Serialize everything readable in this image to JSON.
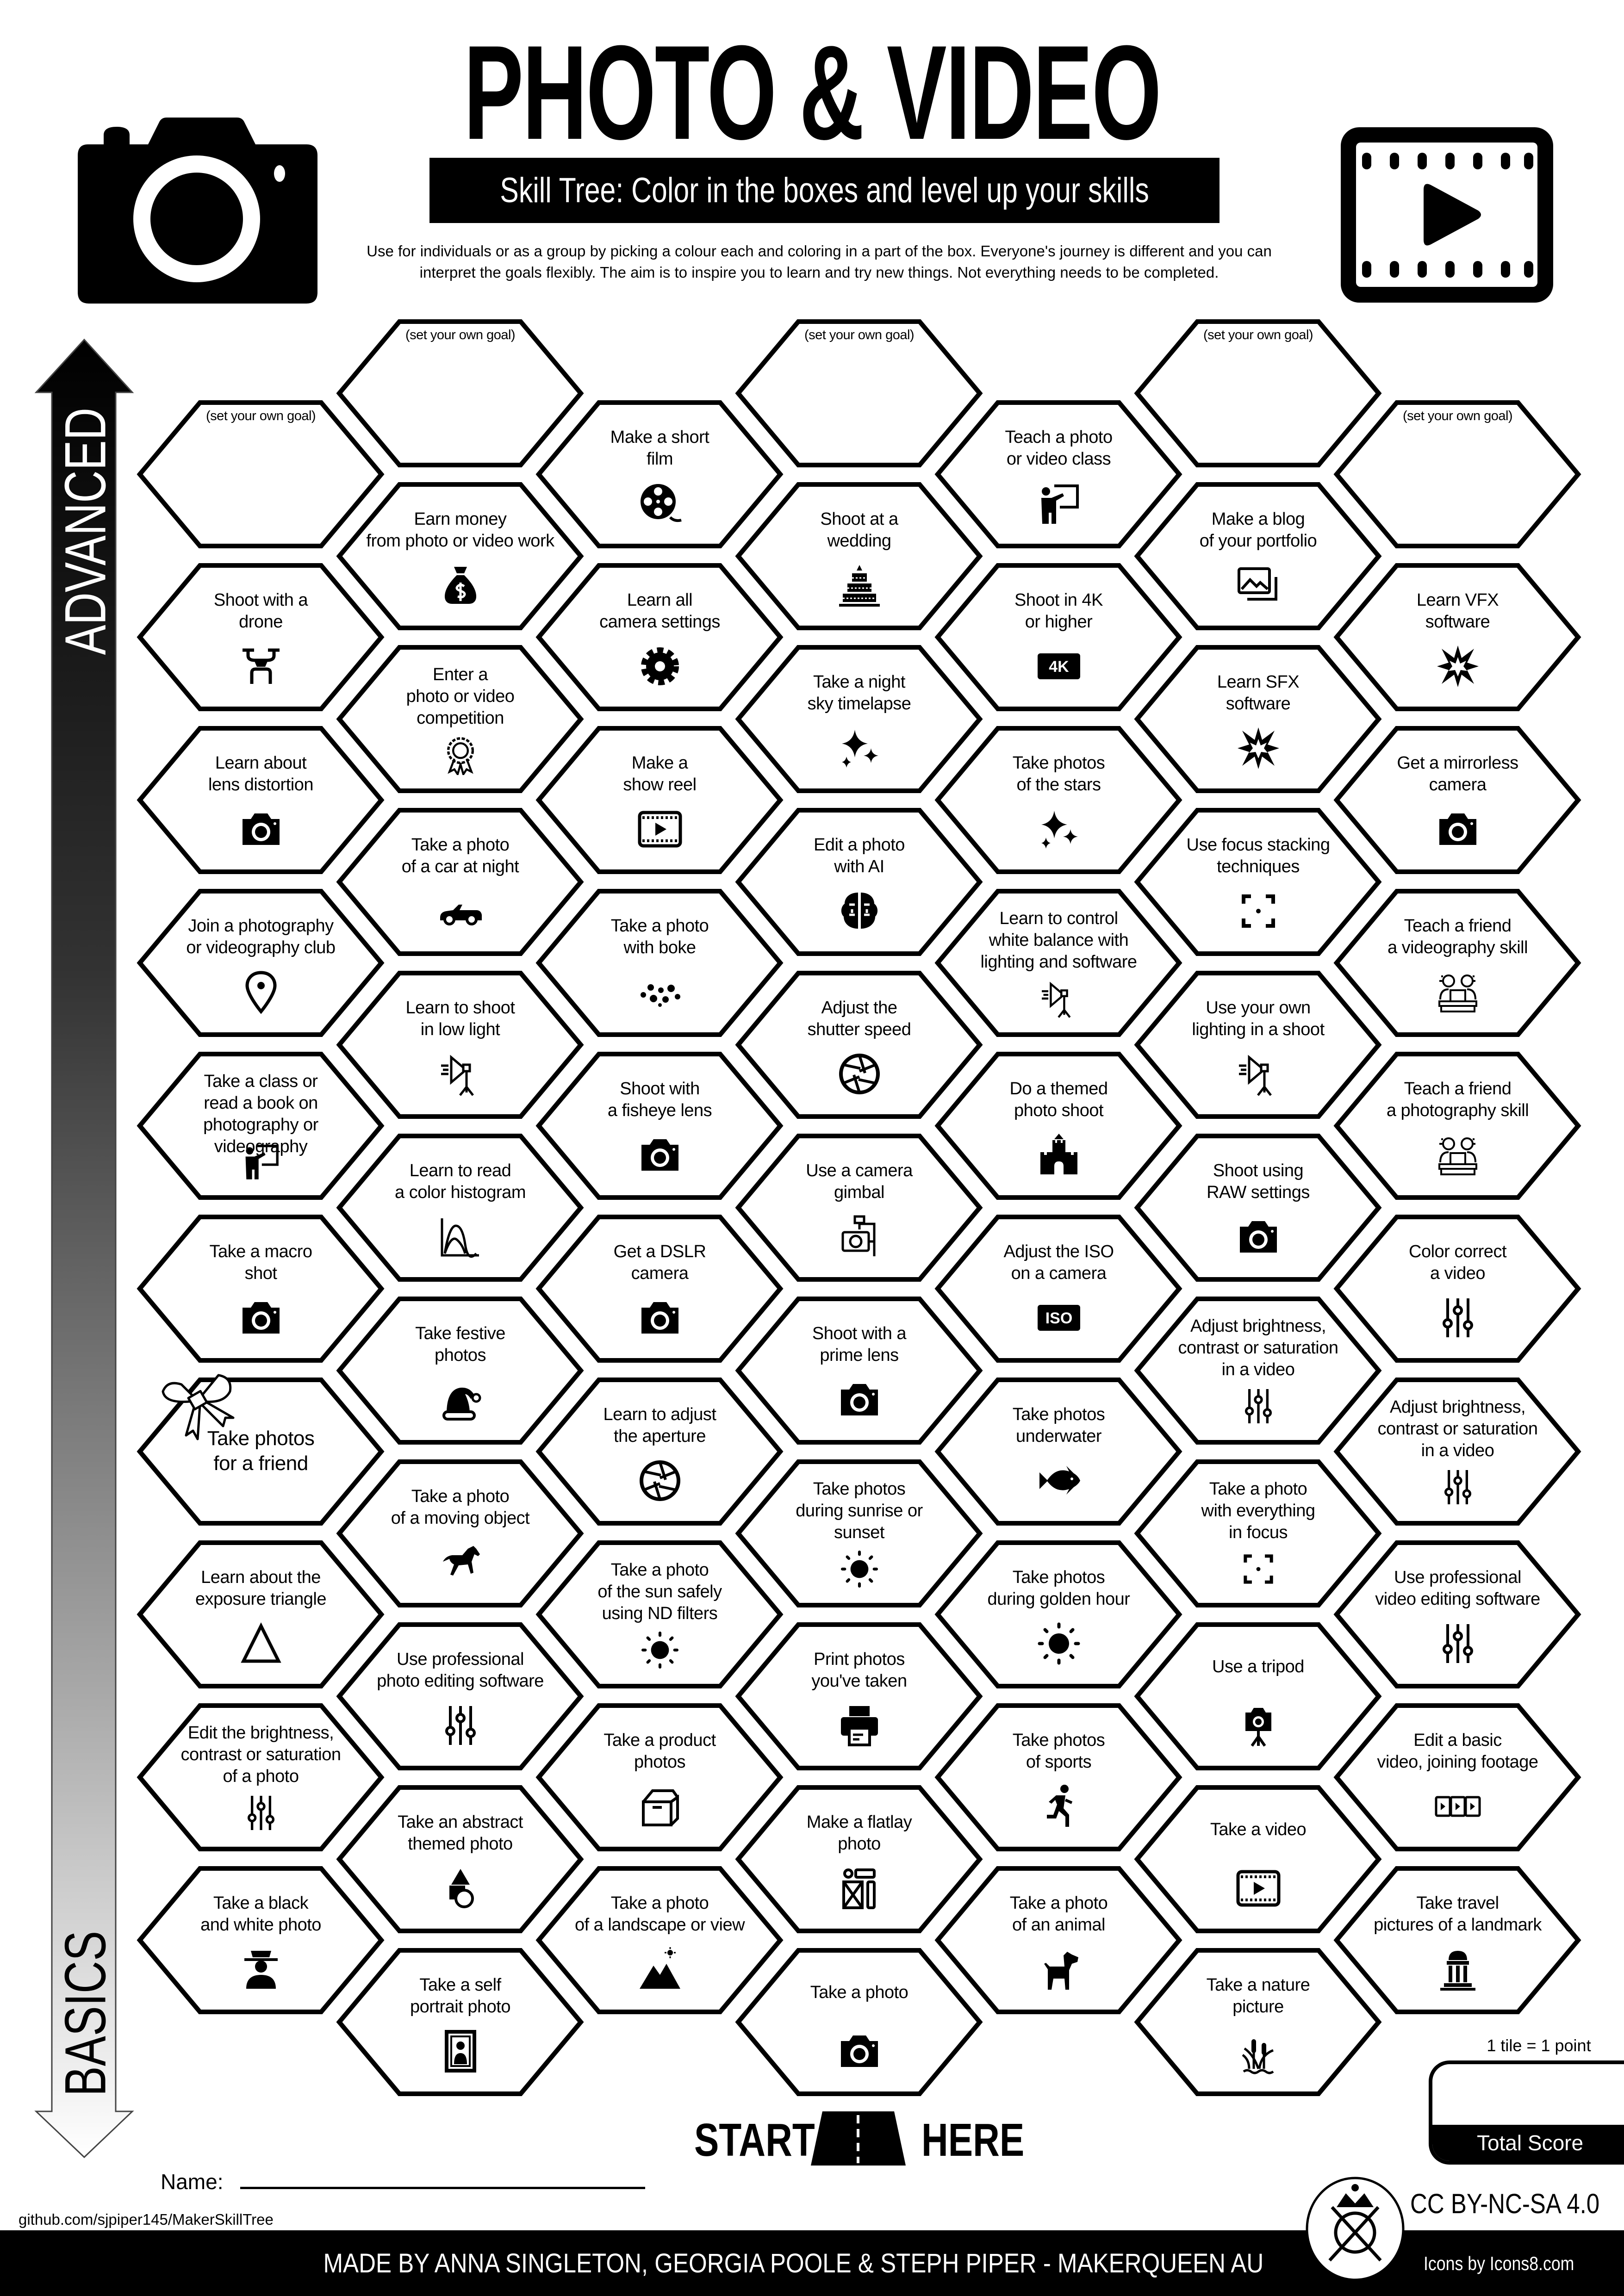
{
  "header": {
    "title": "PHOTO & VIDEO",
    "subtitle": "Skill Tree:  Color in the boxes and level up your skills",
    "description_lines": [
      "Use for individuals or as a group by picking a colour each and coloring in a part of the box.  Everyone's journey is different and you can",
      "interpret the goals flexibly.  The aim is to inspire you to learn and try new things. Not everything needs to be completed."
    ],
    "left_icon": "camera-icon",
    "right_icon": "video-film-icon"
  },
  "axis": {
    "top": "ADVANCED",
    "bottom": "BASICS"
  },
  "columns": [
    [
      {
        "label": "(set your own goal)",
        "kind": "goal"
      },
      {
        "label": "Shoot with a\ndrone",
        "icon": "drone"
      },
      {
        "label": "Learn about\nlens distortion",
        "icon": "camera"
      },
      {
        "label": "Join a photography\nor videography club",
        "icon": "pin"
      },
      {
        "label": "Take a class or\nread a book on\nphotography or videography",
        "icon": "teacher"
      },
      {
        "label": "Take a macro\nshot",
        "icon": "camera"
      },
      {
        "label": "Take photos\nfor a friend",
        "decoration": "bow"
      },
      {
        "label": "Learn about the\nexposure triangle",
        "icon": "triangle"
      },
      {
        "label": "Edit the brightness,\ncontrast or saturation\nof a photo",
        "icon": "sliders"
      },
      {
        "label": "Take a black\nand white photo",
        "icon": "person-hat"
      }
    ],
    [
      {
        "label": "(set your own goal)",
        "kind": "goal"
      },
      {
        "label": "Earn money\nfrom photo or video work",
        "icon": "money-bag"
      },
      {
        "label": "Enter a\nphoto or video\ncompetition",
        "icon": "rosette"
      },
      {
        "label": "Take a photo\nof a car at night",
        "icon": "car"
      },
      {
        "label": "Learn to shoot\nin low light",
        "icon": "studio-light"
      },
      {
        "label": "Learn to read\na color histogram",
        "icon": "histogram"
      },
      {
        "label": "Take festive\nphotos",
        "icon": "santa-hat"
      },
      {
        "label": "Take a photo\nof a moving object",
        "icon": "horse"
      },
      {
        "label": "Use professional\nphoto editing software",
        "icon": "sliders"
      },
      {
        "label": "Take an abstract\nthemed photo",
        "icon": "abstract-shapes"
      },
      {
        "label": "Take a self\nportrait photo",
        "icon": "portrait"
      }
    ],
    [
      {
        "label": "Make a short\nfilm",
        "icon": "film-reel"
      },
      {
        "label": "Learn all\ncamera settings",
        "icon": "gear"
      },
      {
        "label": "Make a\nshow reel",
        "icon": "video"
      },
      {
        "label": "Take a photo\nwith boke",
        "icon": "bokeh"
      },
      {
        "label": "Shoot with\na fisheye lens",
        "icon": "camera"
      },
      {
        "label": "Get a DSLR\ncamera",
        "icon": "camera"
      },
      {
        "label": "Learn to adjust\nthe aperture",
        "icon": "aperture"
      },
      {
        "label": "Take a photo\nof the sun safely\nusing ND filters",
        "icon": "sun"
      },
      {
        "label": "Take a product\nphotos",
        "icon": "box"
      },
      {
        "label": "Take a photo\nof a landscape or view",
        "icon": "mountain"
      }
    ],
    [
      {
        "label": "(set your own goal)",
        "kind": "goal"
      },
      {
        "label": "Shoot at a\nwedding",
        "icon": "wedding-cake"
      },
      {
        "label": "Take a night\nsky timelapse",
        "icon": "sparkles"
      },
      {
        "label": "Edit a photo\nwith AI",
        "icon": "brain"
      },
      {
        "label": "Adjust the\nshutter speed",
        "icon": "aperture"
      },
      {
        "label": "Use a camera\ngimbal",
        "icon": "gimbal"
      },
      {
        "label": "Shoot with a\nprime lens",
        "icon": "camera"
      },
      {
        "label": "Take photos\nduring sunrise or\nsunset",
        "icon": "sun"
      },
      {
        "label": "Print photos\nyou've taken",
        "icon": "printer"
      },
      {
        "label": "Make a flatlay\nphoto",
        "icon": "flatlay"
      },
      {
        "label": "Take a photo",
        "icon": "camera"
      }
    ],
    [
      {
        "label": "Teach a photo\nor video class",
        "icon": "teacher"
      },
      {
        "label": "Shoot in 4K\nor higher",
        "icon": "badge",
        "badge": "4K"
      },
      {
        "label": "Take photos\nof the stars",
        "icon": "sparkles"
      },
      {
        "label": "Learn to control\nwhite balance with\nlighting and software",
        "icon": "studio-light"
      },
      {
        "label": "Do a themed\nphoto shoot",
        "icon": "castle"
      },
      {
        "label": "Adjust the ISO\non a camera",
        "icon": "badge",
        "badge": "ISO"
      },
      {
        "label": "Take photos\nunderwater",
        "icon": "fish"
      },
      {
        "label": "Take photos\nduring golden hour",
        "icon": "sun"
      },
      {
        "label": "Take photos\nof sports",
        "icon": "runner"
      },
      {
        "label": "Take a photo\nof an animal",
        "icon": "dog"
      }
    ],
    [
      {
        "label": "(set your own goal)",
        "kind": "goal"
      },
      {
        "label": "Make a blog\nof your portfolio",
        "icon": "images"
      },
      {
        "label": "Learn SFX\nsoftware",
        "icon": "explosion"
      },
      {
        "label": "Use focus stacking\ntechniques",
        "icon": "focus"
      },
      {
        "label": "Use your own\nlighting in a shoot",
        "icon": "studio-light"
      },
      {
        "label": "Shoot using\nRAW settings",
        "icon": "camera"
      },
      {
        "label": "Adjust brightness,\ncontrast or saturation\nin a video",
        "icon": "sliders"
      },
      {
        "label": "Take a photo\nwith everything\nin focus",
        "icon": "focus"
      },
      {
        "label": "Use a tripod",
        "icon": "tripod"
      },
      {
        "label": "Take a video",
        "icon": "video"
      },
      {
        "label": "Take a nature\npicture",
        "icon": "cattail"
      }
    ],
    [
      {
        "label": "(set your own goal)",
        "kind": "goal"
      },
      {
        "label": "Learn VFX\nsoftware",
        "icon": "explosion"
      },
      {
        "label": "Get a mirrorless\ncamera",
        "icon": "camera"
      },
      {
        "label": "Teach a friend\na videography skill",
        "icon": "teach-friend"
      },
      {
        "label": "Teach a friend\na photography skill",
        "icon": "teach-friend"
      },
      {
        "label": "Color correct\na video",
        "icon": "sliders"
      },
      {
        "label": "Adjust brightness,\ncontrast or saturation\nin a video",
        "icon": "sliders"
      },
      {
        "label": "Use professional\nvideo editing software",
        "icon": "sliders"
      },
      {
        "label": "Edit a basic\nvideo, joining footage",
        "icon": "filmstrip"
      },
      {
        "label": "Take travel\npictures of a landmark",
        "icon": "landmark"
      }
    ]
  ],
  "start": {
    "left": "START",
    "right": "HERE",
    "icon": "road-icon"
  },
  "name_label": "Name:",
  "score": {
    "note": "1 tile = 1 point",
    "label": "Total Score"
  },
  "footer": {
    "github": "github.com/sjpiper145/MakerSkillTree",
    "credits": "MADE BY ANNA SINGLETON, GEORGIA  POOLE & STEPH PIPER  -  MAKERQUEEN AU",
    "license": "CC BY-NC-SA 4.0",
    "icons_credit": "Icons by Icons8.com",
    "logo": "makerqueen-logo"
  },
  "colors": {
    "ink": "#000000",
    "paper": "#ffffff"
  }
}
